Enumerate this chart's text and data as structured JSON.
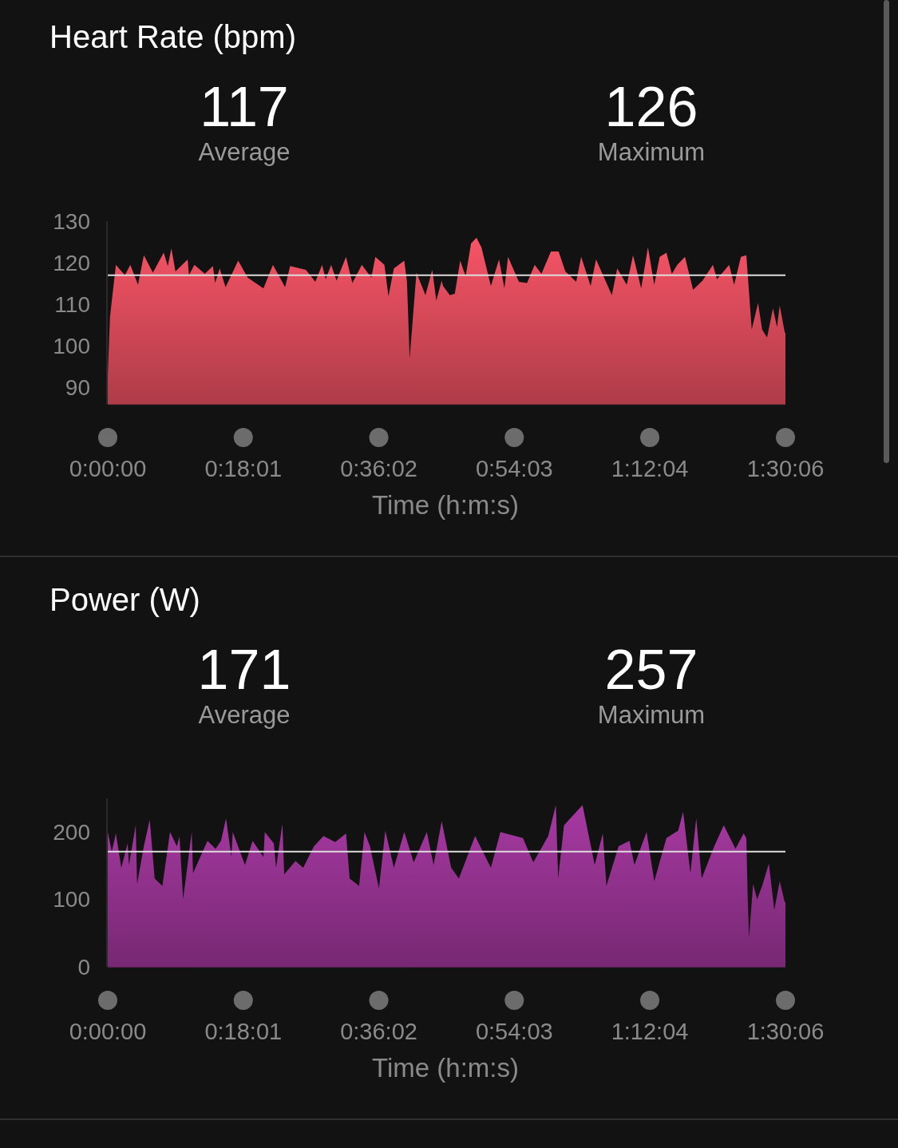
{
  "chart_data": [
    {
      "type": "area",
      "title": "Heart Rate (bpm)",
      "xlabel": "Time (h:m:s)",
      "annotations": [
        "117",
        "Average",
        "126",
        "Maximum"
      ],
      "color": "#d94a5a",
      "x": [
        0,
        0.005,
        0.018,
        0.038,
        0.05,
        0.067,
        0.08,
        0.1,
        0.124,
        0.133,
        0.141,
        0.15,
        0.177,
        0.18,
        0.192,
        0.215,
        0.233,
        0.238,
        0.248,
        0.261,
        0.289,
        0.31,
        0.345,
        0.366,
        0.393,
        0.404,
        0.439,
        0.46,
        0.475,
        0.483,
        0.495,
        0.507,
        0.528,
        0.542,
        0.563,
        0.584,
        0.593,
        0.613,
        0.622,
        0.634,
        0.657,
        0.663,
        0.669,
        0.684,
        0.704,
        0.719,
        0.728,
        0.74,
        0.743,
        0.758,
        0.769,
        0.781,
        0.793,
        0.805,
        0.817,
        0.828,
        0.849,
        0.867,
        0.879,
        0.887,
        0.911,
        0.929,
        0.946,
        0.961,
        0.982,
        0.999,
        1.014,
        1.038,
        1.049,
        1.07,
        1.082,
        1.117,
        1.129,
        1.15,
        1.164,
        1.182,
        1.197,
        1.211,
        1.223,
        1.238,
        1.25,
        1.262,
        1.279,
        1.297,
        1.318,
        1.341,
        1.35,
        1.377,
        1.388,
        1.403,
        1.415,
        1.418,
        1.427,
        1.441,
        1.45,
        1.461,
        1.474,
        1.483,
        1.489,
        1.5,
        1.5017
      ],
      "values": [
        93,
        107,
        119.5,
        117,
        119.5,
        114.7,
        121.8,
        117.6,
        122.4,
        119.2,
        123.4,
        117.9,
        120.8,
        117,
        119.5,
        117.3,
        119.2,
        115.1,
        118.6,
        114.1,
        120.5,
        116.4,
        113.8,
        119.5,
        114.1,
        119.2,
        118.3,
        115.4,
        119.5,
        116,
        119.5,
        115.7,
        121.4,
        115.1,
        119.5,
        116.4,
        121.4,
        119.5,
        111.9,
        118.6,
        120.5,
        115.4,
        96.9,
        117.6,
        112.2,
        118.3,
        110.9,
        115.7,
        114.4,
        112.2,
        112.5,
        120.5,
        116.7,
        124.6,
        126,
        123.7,
        114.4,
        120.8,
        113.8,
        121.4,
        115.4,
        115.1,
        119.5,
        117.3,
        122.7,
        122.7,
        117.9,
        115.4,
        121.4,
        114.4,
        120.8,
        112.2,
        118.6,
        114.7,
        121.8,
        113.8,
        123.7,
        114.7,
        121.4,
        122.4,
        117.3,
        119.5,
        121.4,
        113.5,
        115.7,
        119.5,
        116,
        119.5,
        114.7,
        121.4,
        121.8,
        117.3,
        103.9,
        110.3,
        103.9,
        102,
        109,
        104.5,
        109.7,
        103.3,
        103
      ],
      "xlim": [
        0,
        1.5017
      ],
      "xticks": [
        {
          "value": 0,
          "label": "0:00:00"
        },
        {
          "value": 0.3003,
          "label": "0:18:01"
        },
        {
          "value": 0.6006,
          "label": "0:36:02"
        },
        {
          "value": 0.9008,
          "label": "0:54:03"
        },
        {
          "value": 1.2011,
          "label": "1:12:04"
        },
        {
          "value": 1.5017,
          "label": "1:30:06"
        }
      ],
      "ylim": [
        86,
        130
      ],
      "yticks": [
        90,
        100,
        110,
        120,
        130
      ],
      "ref_lines": [
        {
          "axis": "y",
          "value": 117,
          "color": "#dddddd"
        }
      ]
    },
    {
      "type": "area",
      "title": "Power (W)",
      "xlabel": "Time (h:m:s)",
      "annotations": [
        "171",
        "Average",
        "257",
        "Maximum"
      ],
      "color": "#93328f",
      "x": [
        0,
        0.009,
        0.018,
        0.03,
        0.044,
        0.047,
        0.062,
        0.065,
        0.08,
        0.093,
        0.104,
        0.121,
        0.138,
        0.153,
        0.159,
        0.167,
        0.186,
        0.189,
        0.221,
        0.239,
        0.251,
        0.262,
        0.274,
        0.277,
        0.304,
        0.321,
        0.345,
        0.348,
        0.368,
        0.373,
        0.387,
        0.391,
        0.416,
        0.433,
        0.457,
        0.478,
        0.504,
        0.528,
        0.536,
        0.557,
        0.569,
        0.581,
        0.601,
        0.615,
        0.634,
        0.657,
        0.678,
        0.707,
        0.722,
        0.74,
        0.761,
        0.778,
        0.814,
        0.849,
        0.87,
        0.92,
        0.943,
        0.976,
        0.993,
        0.998,
        1.011,
        1.052,
        1.079,
        1.097,
        1.105,
        1.132,
        1.156,
        1.167,
        1.194,
        1.211,
        1.238,
        1.264,
        1.275,
        1.291,
        1.304,
        1.316,
        1.344,
        1.365,
        1.391,
        1.409,
        1.415,
        1.418,
        1.421,
        1.43,
        1.439,
        1.45,
        1.465,
        1.477,
        1.489,
        1.5,
        1.5017
      ],
      "values": [
        200,
        171,
        198,
        147,
        183,
        151,
        210,
        123,
        179,
        218,
        131,
        120,
        200,
        179,
        193,
        100,
        200,
        139,
        187,
        175,
        187,
        220,
        163,
        200,
        151,
        187,
        163,
        200,
        183,
        147,
        212,
        137,
        157,
        147,
        179,
        194,
        185,
        198,
        131,
        120,
        200,
        179,
        116,
        202,
        147,
        200,
        155,
        200,
        151,
        216,
        147,
        131,
        194,
        147,
        200,
        191,
        155,
        194,
        240,
        131,
        210,
        240,
        151,
        198,
        120,
        179,
        187,
        151,
        200,
        127,
        191,
        202,
        230,
        139,
        220,
        131,
        179,
        210,
        175,
        198,
        191,
        104,
        43,
        123,
        100,
        120,
        153,
        84,
        127,
        96,
        96
      ],
      "xlim": [
        0,
        1.5017
      ],
      "xticks": [
        {
          "value": 0,
          "label": "0:00:00"
        },
        {
          "value": 0.3003,
          "label": "0:18:01"
        },
        {
          "value": 0.6006,
          "label": "0:36:02"
        },
        {
          "value": 0.9008,
          "label": "0:54:03"
        },
        {
          "value": 1.2011,
          "label": "1:12:04"
        },
        {
          "value": 1.5017,
          "label": "1:30:06"
        }
      ],
      "ylim": [
        0,
        250
      ],
      "yticks": [
        0,
        100,
        200
      ],
      "ref_lines": [
        {
          "axis": "y",
          "value": 171,
          "color": "#dddddd"
        }
      ]
    }
  ]
}
